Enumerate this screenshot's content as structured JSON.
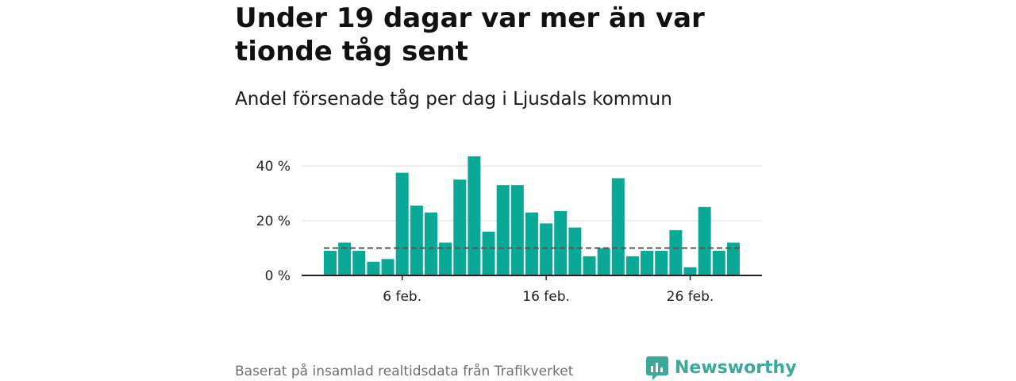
{
  "header": {
    "title": "Under 19 dagar var mer än var tionde tåg sent",
    "subtitle": "Andel försenade tåg per dag i Ljusdals kommun"
  },
  "footer": {
    "source": "Baserat på insamlad realtidsdata från Trafikverket",
    "brand": "Newsworthy",
    "brand_icon": "newsworthy-logo-icon"
  },
  "colors": {
    "bar": "#0aa896",
    "reference_line": "#555555",
    "grid": "#dddddd",
    "axis": "#222222",
    "brand": "#3aa99b"
  },
  "chart_data": {
    "type": "bar",
    "title": "Andel försenade tåg per dag i Ljusdals kommun",
    "xlabel": "",
    "ylabel": "",
    "x_start_label": "1 feb.",
    "categories": [
      "1 feb.",
      "2 feb.",
      "3 feb.",
      "4 feb.",
      "5 feb.",
      "6 feb.",
      "7 feb.",
      "8 feb.",
      "9 feb.",
      "10 feb.",
      "11 feb.",
      "12 feb.",
      "13 feb.",
      "14 feb.",
      "15 feb.",
      "16 feb.",
      "17 feb.",
      "18 feb.",
      "19 feb.",
      "20 feb.",
      "21 feb.",
      "22 feb.",
      "23 feb.",
      "24 feb.",
      "25 feb.",
      "26 feb.",
      "27 feb.",
      "28 feb.",
      "29 feb."
    ],
    "values": [
      9,
      12,
      9,
      5,
      6,
      37.5,
      25.5,
      23,
      12,
      35,
      43.5,
      16,
      33,
      33,
      23,
      19,
      23.5,
      17.5,
      7,
      10,
      35.5,
      7,
      9,
      9,
      16.5,
      3,
      25,
      9,
      12
    ],
    "reference_line": 10,
    "ylim": [
      0,
      45
    ],
    "yticks": [
      0,
      20,
      40
    ],
    "ytick_labels": [
      "0 %",
      "20 %",
      "40 %"
    ],
    "xticks": [
      "6 feb.",
      "16 feb.",
      "26 feb."
    ],
    "grid": true
  }
}
